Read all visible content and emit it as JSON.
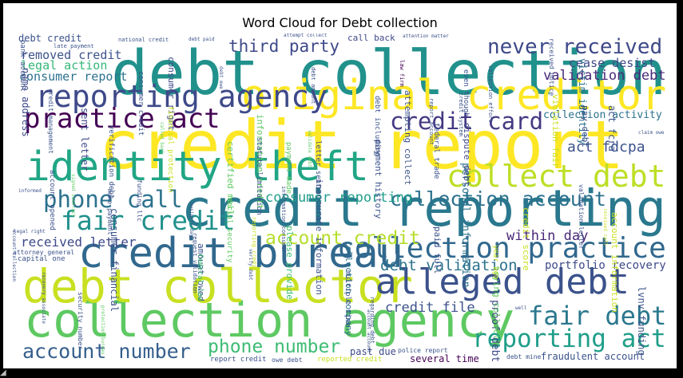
{
  "figure": {
    "background": "#ffffff"
  },
  "chart_data": {
    "type": "wordcloud",
    "title": "Word Cloud for Debt collection",
    "colormap": "viridis",
    "words": [
      {
        "text": "credit report",
        "weight": 100,
        "color": "#fde725"
      },
      {
        "text": "debt collection",
        "weight": 90,
        "color": "#21918c"
      },
      {
        "text": "credit reporting",
        "weight": 72,
        "color": "#2a788e"
      },
      {
        "text": "collection agency",
        "weight": 68,
        "color": "#5ec962"
      },
      {
        "text": "debt collector",
        "weight": 66,
        "color": "#c8e020"
      },
      {
        "text": "original creditor",
        "weight": 58,
        "color": "#fde725"
      },
      {
        "text": "credit bureau",
        "weight": 58,
        "color": "#31688e"
      },
      {
        "text": "identity theft",
        "weight": 56,
        "color": "#21a685"
      },
      {
        "text": "alleged debt",
        "weight": 48,
        "color": "#3b528b"
      },
      {
        "text": "reporting agency",
        "weight": 40,
        "color": "#3e4989"
      },
      {
        "text": "collect debt",
        "weight": 40,
        "color": "#bddf26"
      },
      {
        "text": "collection practice",
        "weight": 38,
        "color": "#31688e"
      },
      {
        "text": "practice act",
        "weight": 36,
        "color": "#440154"
      },
      {
        "text": "fair credit",
        "weight": 34,
        "color": "#21918c"
      },
      {
        "text": "fair debt",
        "weight": 33,
        "color": "#2a788e"
      },
      {
        "text": "reporting act",
        "weight": 32,
        "color": "#1f9e89"
      },
      {
        "text": "credit card",
        "weight": 30,
        "color": "#443983"
      },
      {
        "text": "phone call",
        "weight": 29,
        "color": "#2c728e"
      },
      {
        "text": "never received",
        "weight": 26,
        "color": "#3e4989"
      },
      {
        "text": "collection account",
        "weight": 25,
        "color": "#2c728e"
      },
      {
        "text": "account number",
        "weight": 25,
        "color": "#355f8d"
      },
      {
        "text": "phone number",
        "weight": 23,
        "color": "#3dbc74"
      },
      {
        "text": "account credit",
        "weight": 22,
        "color": "#b5de2b"
      },
      {
        "text": "third party",
        "weight": 20,
        "color": "#3e4989"
      },
      {
        "text": "debt validation",
        "weight": 18,
        "color": "#2c728e"
      },
      {
        "text": "act fdcpa",
        "weight": 17,
        "color": "#3b528b"
      },
      {
        "text": "validation debt",
        "weight": 16,
        "color": "#482878"
      },
      {
        "text": "consumer reporting",
        "weight": 16,
        "color": "#1f9e89"
      },
      {
        "text": "within day",
        "weight": 16,
        "color": "#482878"
      },
      {
        "text": "credit file",
        "weight": 16,
        "color": "#3b528b"
      },
      {
        "text": "received letter",
        "weight": 15,
        "color": "#3e4989"
      },
      {
        "text": "removed credit",
        "weight": 14,
        "color": "#3b528b"
      },
      {
        "text": "legal action",
        "weight": 14,
        "color": "#35b779"
      },
      {
        "text": "consumer report",
        "weight": 14,
        "color": "#2c728e"
      },
      {
        "text": "cease desist",
        "weight": 14,
        "color": "#3e4989"
      },
      {
        "text": "portfolio recovery",
        "weight": 13,
        "color": "#3e4989"
      },
      {
        "text": "collection activity",
        "weight": 12,
        "color": "#2c728e"
      },
      {
        "text": "personal information",
        "weight": 12,
        "color": "#2c728e"
      },
      {
        "text": "proof debt",
        "weight": 12,
        "color": "#3e4989"
      },
      {
        "text": "fraudulent account",
        "weight": 11,
        "color": "#3b528b"
      },
      {
        "text": "past due",
        "weight": 11,
        "color": "#3e4989"
      },
      {
        "text": "victim identity",
        "weight": 11,
        "color": "#2c728e"
      },
      {
        "text": "act fcra",
        "weight": 10,
        "color": "#3b528b"
      },
      {
        "text": "lvnv funding",
        "weight": 10,
        "color": "#3b528b"
      },
      {
        "text": "name address",
        "weight": 10,
        "color": "#3e4989"
      },
      {
        "text": "several time",
        "weight": 10,
        "color": "#440154"
      },
      {
        "text": "sent letter",
        "weight": 10,
        "color": "#3e4989"
      },
      {
        "text": "consumer financial",
        "weight": 10,
        "color": "#3b528b"
      },
      {
        "text": "debt credit",
        "weight": 10,
        "color": "#3b528b"
      },
      {
        "text": "consumer right",
        "weight": 9,
        "color": "#3e4989"
      },
      {
        "text": "amount owed",
        "weight": 9,
        "color": "#3b528b"
      },
      {
        "text": "certified mail",
        "weight": 9,
        "color": "#5ec962"
      },
      {
        "text": "information credit",
        "weight": 9,
        "color": "#5ec962"
      },
      {
        "text": "please provide",
        "weight": 9,
        "color": "#3dbc74"
      },
      {
        "text": "inaccurate information",
        "weight": 9,
        "color": "#3b528b"
      },
      {
        "text": "collection company",
        "weight": 9,
        "color": "#2c728e"
      },
      {
        "text": "payment history",
        "weight": 9,
        "color": "#3b528b"
      },
      {
        "text": "attempting collect",
        "weight": 9,
        "color": "#3b528b"
      },
      {
        "text": "paid full",
        "weight": 9,
        "color": "#3b528b"
      },
      {
        "text": "dispute debt",
        "weight": 9,
        "color": "#3e4989"
      },
      {
        "text": "trying collect",
        "weight": 9,
        "color": "#5ec962"
      },
      {
        "text": "credit score",
        "weight": 9,
        "color": "#c8e020"
      },
      {
        "text": "violation fair",
        "weight": 9,
        "color": "#c8e020"
      },
      {
        "text": "pay debt",
        "weight": 9,
        "color": "#3b528b"
      },
      {
        "text": "account information",
        "weight": 9,
        "color": "#c8e020"
      },
      {
        "text": "call back",
        "weight": 9,
        "color": "#3e4989"
      },
      {
        "text": "bank account",
        "weight": 8,
        "color": "#3b528b"
      },
      {
        "text": "account opened",
        "weight": 8,
        "color": "#3b528b"
      },
      {
        "text": "reported credit",
        "weight": 8,
        "color": "#c8e020"
      },
      {
        "text": "verification debt",
        "weight": 8,
        "color": "#3b528b"
      },
      {
        "text": "consumer credit",
        "weight": 8,
        "color": "#3b528b"
      },
      {
        "text": "financial protection",
        "weight": 8,
        "color": "#c8e020"
      },
      {
        "text": "federal law",
        "weight": 8,
        "color": "#3dbc74"
      },
      {
        "text": "social security",
        "weight": 8,
        "color": "#5ec962"
      },
      {
        "text": "statute limitation",
        "weight": 8,
        "color": "#3b528b"
      },
      {
        "text": "payment made",
        "weight": 8,
        "color": "#5ec962"
      },
      {
        "text": "letter sent",
        "weight": 8,
        "color": "#3b528b"
      },
      {
        "text": "multiple time",
        "weight": 8,
        "color": "#3b528b"
      },
      {
        "text": "debt including",
        "weight": 8,
        "color": "#3b528b"
      },
      {
        "text": "capital one",
        "weight": 8,
        "color": "#3b528b"
      },
      {
        "text": "federal trade",
        "weight": 8,
        "color": "#3b528b"
      },
      {
        "text": "even though",
        "weight": 8,
        "color": "#3b528b"
      },
      {
        "text": "year ago",
        "weight": 8,
        "color": "#c8e020"
      },
      {
        "text": "report credit",
        "weight": 8,
        "color": "#3b528b"
      },
      {
        "text": "received notice",
        "weight": 7,
        "color": "#3b528b"
      },
      {
        "text": "validation letter",
        "weight": 7,
        "color": "#3b528b"
      },
      {
        "text": "owe debt",
        "weight": 7,
        "color": "#3b528b"
      },
      {
        "text": "debt mine",
        "weight": 7,
        "color": "#3b528b"
      },
      {
        "text": "police report",
        "weight": 7,
        "color": "#3b528b"
      },
      {
        "text": "credit management",
        "weight": 7,
        "color": "#3b528b"
      },
      {
        "text": "security number",
        "weight": 7,
        "color": "#3b528b"
      },
      {
        "text": "make payment",
        "weight": 7,
        "color": "#3b528b"
      },
      {
        "text": "funding llc",
        "weight": 7,
        "color": "#3b528b"
      },
      {
        "text": "attorney general",
        "weight": 7,
        "color": "#3b528b"
      },
      {
        "text": "request validation",
        "weight": 6,
        "color": "#3b528b"
      },
      {
        "text": "national credit",
        "weight": 6,
        "color": "#3b528b"
      },
      {
        "text": "reporting credit",
        "weight": 6,
        "color": "#c8e020"
      },
      {
        "text": "information consumer",
        "weight": 6,
        "color": "#3b528b"
      },
      {
        "text": "debt amount",
        "weight": 6,
        "color": "#3b528b"
      },
      {
        "text": "late payment",
        "weight": 6,
        "color": "#3b528b"
      },
      {
        "text": "regarding debt",
        "weight": 6,
        "color": "#3b528b"
      },
      {
        "text": "law firm",
        "weight": 6,
        "color": "#440154"
      },
      {
        "text": "report account",
        "weight": 6,
        "color": "#3b528b"
      },
      {
        "text": "credit system",
        "weight": 6,
        "color": "#3b528b"
      },
      {
        "text": "collection effort",
        "weight": 6,
        "color": "#3b528b"
      },
      {
        "text": "legal right",
        "weight": 5,
        "color": "#3b528b"
      },
      {
        "text": "attention matter",
        "weight": 5,
        "color": "#3b528b"
      },
      {
        "text": "informed",
        "weight": 5,
        "color": "#3b528b"
      },
      {
        "text": "received call",
        "weight": 5,
        "color": "#c8e020"
      },
      {
        "text": "claim owe",
        "weight": 5,
        "color": "#3b528b"
      },
      {
        "text": "account collection",
        "weight": 5,
        "color": "#3b528b"
      },
      {
        "text": "recovery associate",
        "weight": 5,
        "color": "#3b528b"
      },
      {
        "text": "signed contract",
        "weight": 5,
        "color": "#5ec962"
      },
      {
        "text": "protection bureau",
        "weight": 5,
        "color": "#5ec962"
      },
      {
        "text": "attempt collect",
        "weight": 5,
        "color": "#3b528b"
      },
      {
        "text": "called back",
        "weight": 5,
        "color": "#5ec962"
      },
      {
        "text": "business day",
        "weight": 5,
        "color": "#3b528b"
      },
      {
        "text": "debt owe",
        "weight": 5,
        "color": "#3b528b"
      },
      {
        "text": "verify debt",
        "weight": 5,
        "color": "#3b528b"
      },
      {
        "text": "well",
        "weight": 5,
        "color": "#3b528b"
      },
      {
        "text": "validate debt",
        "weight": 5,
        "color": "#5ec962"
      },
      {
        "text": "debt paid",
        "weight": 5,
        "color": "#3b528b"
      },
      {
        "text": "account account",
        "weight": 5,
        "color": "#3b528b"
      }
    ]
  }
}
